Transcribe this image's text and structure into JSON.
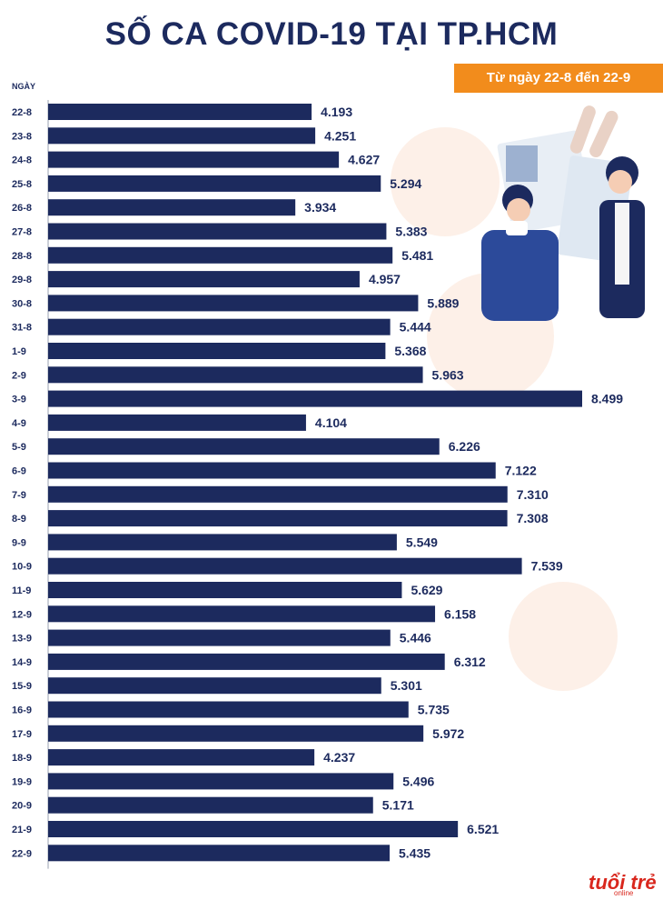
{
  "title": "SỐ CA COVID-19 TẠI TP.HCM",
  "subtitle": "Từ ngày 22-8 đến 22-9",
  "logo": {
    "text": "tuổi trẻ",
    "sub": "online"
  },
  "colors": {
    "bar": "#1c2a5e",
    "accent": "#f28c1c",
    "text": "#1c2a5e"
  },
  "chart_data": {
    "type": "bar",
    "orientation": "horizontal",
    "ylabel": "NGÀY",
    "categories": [
      "22-8",
      "23-8",
      "24-8",
      "25-8",
      "26-8",
      "27-8",
      "28-8",
      "29-8",
      "30-8",
      "31-8",
      "1-9",
      "2-9",
      "3-9",
      "4-9",
      "5-9",
      "6-9",
      "7-9",
      "8-9",
      "9-9",
      "10-9",
      "11-9",
      "12-9",
      "13-9",
      "14-9",
      "15-9",
      "16-9",
      "17-9",
      "18-9",
      "19-9",
      "20-9",
      "21-9",
      "22-9"
    ],
    "values": [
      4193,
      4251,
      4627,
      5294,
      3934,
      5383,
      5481,
      4957,
      5889,
      5444,
      5368,
      5963,
      8499,
      4104,
      6226,
      7122,
      7310,
      7308,
      5549,
      7539,
      5629,
      6158,
      5446,
      6312,
      5301,
      5735,
      5972,
      4237,
      5496,
      5171,
      6521,
      5435
    ],
    "value_labels": [
      "4.193",
      "4.251",
      "4.627",
      "5.294",
      "3.934",
      "5.383",
      "5.481",
      "4.957",
      "5.889",
      "5.444",
      "5.368",
      "5.963",
      "8.499",
      "4.104",
      "6.226",
      "7.122",
      "7.310",
      "7.308",
      "5.549",
      "7.539",
      "5.629",
      "6.158",
      "5.446",
      "6.312",
      "5.301",
      "5.735",
      "5.972",
      "4.237",
      "5.496",
      "5.171",
      "6.521",
      "5.435"
    ],
    "xlim": [
      0,
      8499
    ],
    "grid": false
  }
}
